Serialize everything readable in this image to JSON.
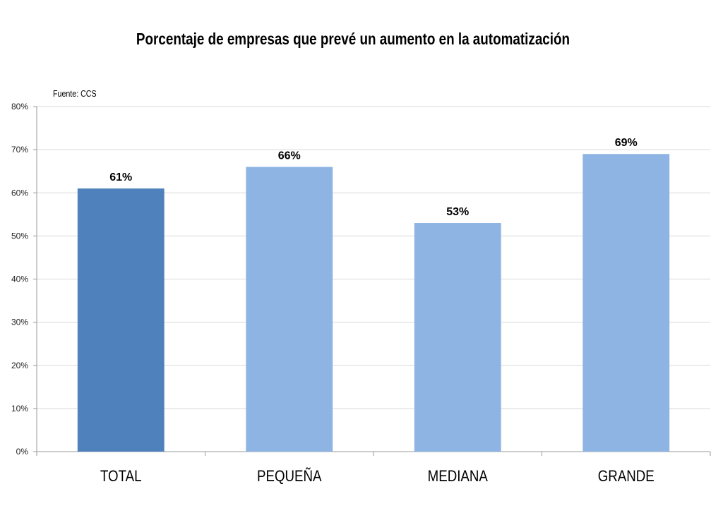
{
  "chart_data": {
    "type": "bar",
    "title": "Porcentaje de empresas que prevé un aumento en la automatización",
    "note": "Fuente: CCS",
    "categories": [
      "TOTAL",
      "PEQUEÑA",
      "MEDIANA",
      "GRANDE"
    ],
    "values": [
      61,
      66,
      53,
      69
    ],
    "data_labels": [
      "61%",
      "66%",
      "53%",
      "69%"
    ],
    "bar_colors": [
      "#4f81bd",
      "#8eb4e3",
      "#8eb4e3",
      "#8eb4e3"
    ],
    "ylim": [
      0,
      80
    ],
    "yticks": [
      "0%",
      "10%",
      "20%",
      "30%",
      "40%",
      "50%",
      "60%",
      "70%",
      "80%"
    ],
    "grid": true,
    "gridline_color": "#d9d9d9",
    "xlabel": "",
    "ylabel": ""
  }
}
